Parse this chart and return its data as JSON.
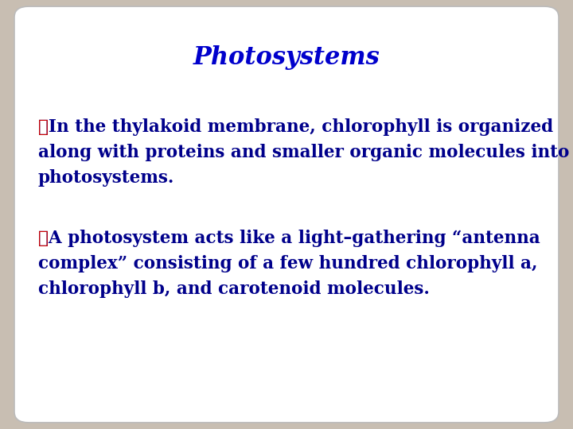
{
  "title": "Photosystems",
  "title_color": "#0000CC",
  "title_fontsize": 22,
  "title_font": "serif",
  "bullet_color": "#CC0000",
  "text_color": "#00008B",
  "text_fontsize": 15.5,
  "text_font": "serif",
  "background_outer": "#C8BEB2",
  "background_inner": "#FFFFFF",
  "bullet1_line1": "❖In the thylakoid membrane, chlorophyll is organized",
  "bullet1_line2": "along with proteins and smaller organic molecules into",
  "bullet1_line3": "photosystems.",
  "bullet2_line1": "❖A photosystem acts like a light–gathering “antenna",
  "bullet2_line2": "complex” consisting of a few hundred chlorophyll a,",
  "bullet2_line3": "chlorophyll b, and carotenoid molecules."
}
